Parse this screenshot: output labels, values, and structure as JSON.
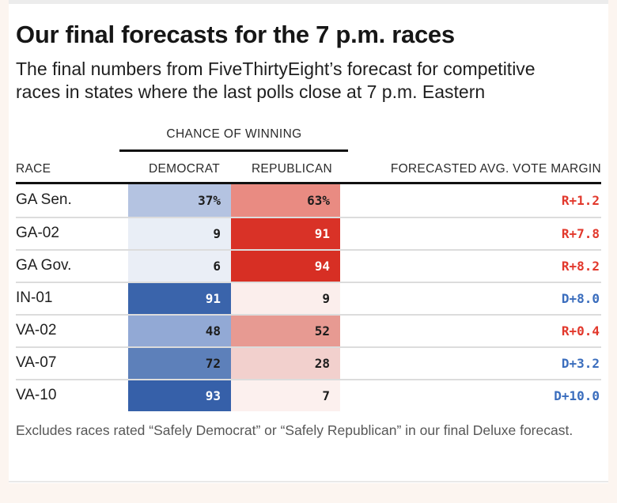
{
  "colors": {
    "page_bg": "#fcf5f0",
    "card_bg": "#ffffff",
    "top_strip": "#ececec",
    "rule_black": "#111111",
    "row_separator": "#dcdcdc",
    "dem_margin": "#3a6dbd",
    "rep_margin": "#e2382c"
  },
  "chart_data": {
    "type": "table",
    "title": "Our final forecasts for the 7 p.m. races",
    "subtitle": "The final numbers from FiveThirtyEight’s forecast for competitive races in states where the last polls close at 7 p.m. Eastern",
    "group_header": "CHANCE OF WINNING",
    "columns": {
      "race": "RACE",
      "dem": "DEMOCRAT",
      "rep": "REPUBLICAN",
      "margin": "FORECASTED AVG. VOTE MARGIN"
    },
    "rows": [
      {
        "race": "GA Sen.",
        "dem_pct": 37,
        "rep_pct": 63,
        "dem_label": "37%",
        "rep_label": "63%",
        "margin": "R+1.2",
        "margin_party": "R",
        "dem_bg": "#b4c3e1",
        "dem_fg": "#1c1c1c",
        "rep_bg": "#e98b82",
        "rep_fg": "#1c1c1c"
      },
      {
        "race": "GA-02",
        "dem_pct": 9,
        "rep_pct": 91,
        "dem_label": "9",
        "rep_label": "91",
        "margin": "R+7.8",
        "margin_party": "R",
        "dem_bg": "#e9eef6",
        "dem_fg": "#1c1c1c",
        "rep_bg": "#d93227",
        "rep_fg": "#ffffff"
      },
      {
        "race": "GA Gov.",
        "dem_pct": 6,
        "rep_pct": 94,
        "dem_label": "6",
        "rep_label": "94",
        "margin": "R+8.2",
        "margin_party": "R",
        "dem_bg": "#eaeef6",
        "dem_fg": "#1c1c1c",
        "rep_bg": "#d72f24",
        "rep_fg": "#ffffff"
      },
      {
        "race": "IN-01",
        "dem_pct": 91,
        "rep_pct": 9,
        "dem_label": "91",
        "rep_label": "9",
        "margin": "D+8.0",
        "margin_party": "D",
        "dem_bg": "#3a64ab",
        "dem_fg": "#ffffff",
        "rep_bg": "#fbeeec",
        "rep_fg": "#1c1c1c"
      },
      {
        "race": "VA-02",
        "dem_pct": 48,
        "rep_pct": 52,
        "dem_label": "48",
        "rep_label": "52",
        "margin": "R+0.4",
        "margin_party": "R",
        "dem_bg": "#92a9d5",
        "dem_fg": "#1c1c1c",
        "rep_bg": "#e79a92",
        "rep_fg": "#1c1c1c"
      },
      {
        "race": "VA-07",
        "dem_pct": 72,
        "rep_pct": 28,
        "dem_label": "72",
        "rep_label": "28",
        "margin": "D+3.2",
        "margin_party": "D",
        "dem_bg": "#5d80ba",
        "dem_fg": "#1c1c1c",
        "rep_bg": "#f2d0cd",
        "rep_fg": "#1c1c1c"
      },
      {
        "race": "VA-10",
        "dem_pct": 93,
        "rep_pct": 7,
        "dem_label": "93",
        "rep_label": "7",
        "margin": "D+10.0",
        "margin_party": "D",
        "dem_bg": "#3660a9",
        "dem_fg": "#ffffff",
        "rep_bg": "#fcf0ee",
        "rep_fg": "#1c1c1c"
      }
    ],
    "footnote": "Excludes races rated “Safely Democrat” or “Safely Republican” in our final Deluxe forecast."
  }
}
